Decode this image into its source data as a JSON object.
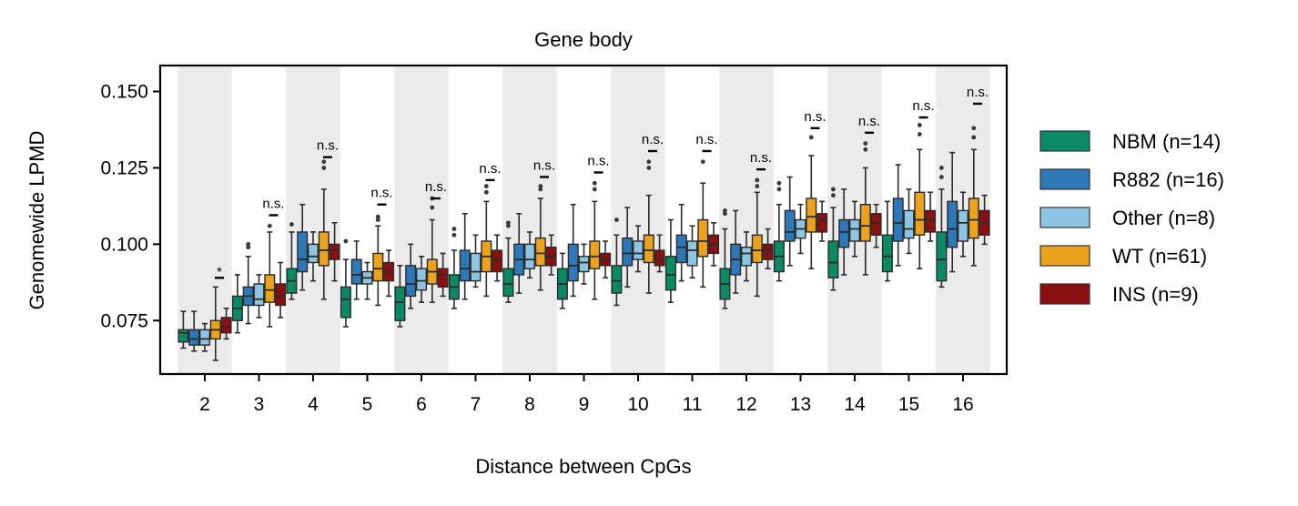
{
  "chart_data": {
    "type": "box",
    "title": "Gene body",
    "xlabel": "Distance between CpGs",
    "ylabel": "Genomewide LPMD",
    "ylim": [
      0.0575,
      0.1585
    ],
    "yticks": [
      0.075,
      0.1,
      0.125,
      0.15
    ],
    "ytick_labels": [
      "0.075",
      "0.100",
      "0.125",
      "0.150"
    ],
    "categories": [
      "2",
      "3",
      "4",
      "5",
      "6",
      "7",
      "8",
      "9",
      "10",
      "11",
      "12",
      "13",
      "14",
      "15",
      "16"
    ],
    "legend_position": "right",
    "shaded_bands": "alternating categories (2, 4, 6, 8, 10, 12, 14, 16)",
    "series": [
      {
        "name": "NBM (n=14)",
        "color": "#0a8a63",
        "boxes": [
          {
            "whislo": 0.066,
            "q1": 0.068,
            "med": 0.071,
            "q3": 0.072,
            "whishi": 0.078,
            "fliers": []
          },
          {
            "whislo": 0.071,
            "q1": 0.075,
            "med": 0.079,
            "q3": 0.083,
            "whishi": 0.09,
            "fliers": []
          },
          {
            "whislo": 0.082,
            "q1": 0.084,
            "med": 0.088,
            "q3": 0.092,
            "whishi": 0.104,
            "fliers": [
              0.1065
            ]
          },
          {
            "whislo": 0.073,
            "q1": 0.076,
            "med": 0.082,
            "q3": 0.086,
            "whishi": 0.095,
            "fliers": [
              0.101
            ]
          },
          {
            "whislo": 0.073,
            "q1": 0.075,
            "med": 0.081,
            "q3": 0.086,
            "whishi": 0.093,
            "fliers": []
          },
          {
            "whislo": 0.079,
            "q1": 0.082,
            "med": 0.086,
            "q3": 0.09,
            "whishi": 0.098,
            "fliers": [
              0.103,
              0.105
            ]
          },
          {
            "whislo": 0.081,
            "q1": 0.083,
            "med": 0.087,
            "q3": 0.092,
            "whishi": 0.102,
            "fliers": [
              0.106,
              0.107
            ]
          },
          {
            "whislo": 0.079,
            "q1": 0.082,
            "med": 0.087,
            "q3": 0.092,
            "whishi": 0.097,
            "fliers": []
          },
          {
            "whislo": 0.08,
            "q1": 0.084,
            "med": 0.088,
            "q3": 0.093,
            "whishi": 0.103,
            "fliers": [
              0.108
            ]
          },
          {
            "whislo": 0.081,
            "q1": 0.085,
            "med": 0.09,
            "q3": 0.096,
            "whishi": 0.108,
            "fliers": []
          },
          {
            "whislo": 0.079,
            "q1": 0.082,
            "med": 0.087,
            "q3": 0.092,
            "whishi": 0.105,
            "fliers": [
              0.11,
              0.111
            ]
          },
          {
            "whislo": 0.088,
            "q1": 0.091,
            "med": 0.096,
            "q3": 0.101,
            "whishi": 0.113,
            "fliers": [
              0.118,
              0.12
            ]
          },
          {
            "whislo": 0.085,
            "q1": 0.089,
            "med": 0.094,
            "q3": 0.101,
            "whishi": 0.112,
            "fliers": [
              0.116,
              0.118
            ]
          },
          {
            "whislo": 0.088,
            "q1": 0.091,
            "med": 0.096,
            "q3": 0.103,
            "whishi": 0.114,
            "fliers": []
          },
          {
            "whislo": 0.086,
            "q1": 0.088,
            "med": 0.095,
            "q3": 0.104,
            "whishi": 0.118,
            "fliers": [
              0.122,
              0.125
            ]
          }
        ]
      },
      {
        "name": "R882 (n=16)",
        "color": "#2e78b8",
        "boxes": [
          {
            "whislo": 0.065,
            "q1": 0.067,
            "med": 0.069,
            "q3": 0.072,
            "whishi": 0.078,
            "fliers": []
          },
          {
            "whislo": 0.074,
            "q1": 0.08,
            "med": 0.083,
            "q3": 0.086,
            "whishi": 0.096,
            "fliers": [
              0.099,
              0.1
            ]
          },
          {
            "whislo": 0.085,
            "q1": 0.091,
            "med": 0.095,
            "q3": 0.104,
            "whishi": 0.113,
            "fliers": []
          },
          {
            "whislo": 0.082,
            "q1": 0.087,
            "med": 0.09,
            "q3": 0.095,
            "whishi": 0.101,
            "fliers": []
          },
          {
            "whislo": 0.079,
            "q1": 0.083,
            "med": 0.087,
            "q3": 0.093,
            "whishi": 0.1,
            "fliers": []
          },
          {
            "whislo": 0.082,
            "q1": 0.088,
            "med": 0.092,
            "q3": 0.098,
            "whishi": 0.11,
            "fliers": []
          },
          {
            "whislo": 0.084,
            "q1": 0.09,
            "med": 0.095,
            "q3": 0.1,
            "whishi": 0.11,
            "fliers": []
          },
          {
            "whislo": 0.083,
            "q1": 0.088,
            "med": 0.093,
            "q3": 0.1,
            "whishi": 0.113,
            "fliers": []
          },
          {
            "whislo": 0.086,
            "q1": 0.093,
            "med": 0.097,
            "q3": 0.102,
            "whishi": 0.112,
            "fliers": []
          },
          {
            "whislo": 0.088,
            "q1": 0.094,
            "med": 0.099,
            "q3": 0.103,
            "whishi": 0.113,
            "fliers": []
          },
          {
            "whislo": 0.084,
            "q1": 0.09,
            "med": 0.095,
            "q3": 0.1,
            "whishi": 0.111,
            "fliers": []
          },
          {
            "whislo": 0.093,
            "q1": 0.101,
            "med": 0.104,
            "q3": 0.111,
            "whishi": 0.122,
            "fliers": []
          },
          {
            "whislo": 0.09,
            "q1": 0.099,
            "med": 0.104,
            "q3": 0.108,
            "whishi": 0.118,
            "fliers": []
          },
          {
            "whislo": 0.093,
            "q1": 0.101,
            "med": 0.107,
            "q3": 0.115,
            "whishi": 0.126,
            "fliers": []
          },
          {
            "whislo": 0.091,
            "q1": 0.099,
            "med": 0.105,
            "q3": 0.114,
            "whishi": 0.13,
            "fliers": []
          }
        ]
      },
      {
        "name": "Other (n=8)",
        "color": "#8dc5e2",
        "boxes": [
          {
            "whislo": 0.065,
            "q1": 0.067,
            "med": 0.069,
            "q3": 0.072,
            "whishi": 0.074,
            "fliers": []
          },
          {
            "whislo": 0.076,
            "q1": 0.08,
            "med": 0.082,
            "q3": 0.087,
            "whishi": 0.09,
            "fliers": []
          },
          {
            "whislo": 0.088,
            "q1": 0.094,
            "med": 0.096,
            "q3": 0.1,
            "whishi": 0.104,
            "fliers": []
          },
          {
            "whislo": 0.082,
            "q1": 0.087,
            "med": 0.089,
            "q3": 0.091,
            "whishi": 0.094,
            "fliers": []
          },
          {
            "whislo": 0.081,
            "q1": 0.085,
            "med": 0.088,
            "q3": 0.092,
            "whishi": 0.096,
            "fliers": []
          },
          {
            "whislo": 0.086,
            "q1": 0.088,
            "med": 0.091,
            "q3": 0.097,
            "whishi": 0.103,
            "fliers": []
          },
          {
            "whislo": 0.089,
            "q1": 0.092,
            "med": 0.095,
            "q3": 0.1,
            "whishi": 0.104,
            "fliers": []
          },
          {
            "whislo": 0.087,
            "q1": 0.091,
            "med": 0.094,
            "q3": 0.096,
            "whishi": 0.1,
            "fliers": []
          },
          {
            "whislo": 0.091,
            "q1": 0.095,
            "med": 0.097,
            "q3": 0.101,
            "whishi": 0.106,
            "fliers": []
          },
          {
            "whislo": 0.089,
            "q1": 0.093,
            "med": 0.098,
            "q3": 0.101,
            "whishi": 0.106,
            "fliers": []
          },
          {
            "whislo": 0.088,
            "q1": 0.093,
            "med": 0.097,
            "q3": 0.099,
            "whishi": 0.104,
            "fliers": []
          },
          {
            "whislo": 0.097,
            "q1": 0.102,
            "med": 0.105,
            "q3": 0.108,
            "whishi": 0.113,
            "fliers": []
          },
          {
            "whislo": 0.096,
            "q1": 0.101,
            "med": 0.105,
            "q3": 0.108,
            "whishi": 0.114,
            "fliers": []
          },
          {
            "whislo": 0.097,
            "q1": 0.102,
            "med": 0.105,
            "q3": 0.111,
            "whishi": 0.118,
            "fliers": []
          },
          {
            "whislo": 0.096,
            "q1": 0.101,
            "med": 0.107,
            "q3": 0.111,
            "whishi": 0.117,
            "fliers": []
          }
        ]
      },
      {
        "name": "WT (n=61)",
        "color": "#eca21d",
        "boxes": [
          {
            "whislo": 0.062,
            "q1": 0.069,
            "med": 0.072,
            "q3": 0.075,
            "whishi": 0.086,
            "fliers": []
          },
          {
            "whislo": 0.073,
            "q1": 0.081,
            "med": 0.085,
            "q3": 0.09,
            "whishi": 0.104,
            "fliers": [
              0.106
            ]
          },
          {
            "whislo": 0.082,
            "q1": 0.093,
            "med": 0.098,
            "q3": 0.104,
            "whishi": 0.118,
            "fliers": [
              0.125,
              0.127
            ]
          },
          {
            "whislo": 0.08,
            "q1": 0.088,
            "med": 0.092,
            "q3": 0.097,
            "whishi": 0.106,
            "fliers": [
              0.108,
              0.109
            ]
          },
          {
            "whislo": 0.081,
            "q1": 0.087,
            "med": 0.091,
            "q3": 0.095,
            "whishi": 0.108,
            "fliers": [
              0.112,
              0.115
            ]
          },
          {
            "whislo": 0.083,
            "q1": 0.091,
            "med": 0.096,
            "q3": 0.101,
            "whishi": 0.114,
            "fliers": [
              0.117,
              0.119
            ]
          },
          {
            "whislo": 0.085,
            "q1": 0.093,
            "med": 0.097,
            "q3": 0.102,
            "whishi": 0.115,
            "fliers": [
              0.118,
              0.119
            ]
          },
          {
            "whislo": 0.082,
            "q1": 0.092,
            "med": 0.096,
            "q3": 0.101,
            "whishi": 0.114,
            "fliers": [
              0.118,
              0.12
            ]
          },
          {
            "whislo": 0.084,
            "q1": 0.094,
            "med": 0.098,
            "q3": 0.103,
            "whishi": 0.116,
            "fliers": [
              0.125,
              0.127
            ]
          },
          {
            "whislo": 0.086,
            "q1": 0.096,
            "med": 0.101,
            "q3": 0.108,
            "whishi": 0.12,
            "fliers": [
              0.127
            ]
          },
          {
            "whislo": 0.083,
            "q1": 0.094,
            "med": 0.098,
            "q3": 0.103,
            "whishi": 0.117,
            "fliers": [
              0.119,
              0.121
            ]
          },
          {
            "whislo": 0.092,
            "q1": 0.104,
            "med": 0.109,
            "q3": 0.115,
            "whishi": 0.129,
            "fliers": [
              0.135
            ]
          },
          {
            "whislo": 0.09,
            "q1": 0.101,
            "med": 0.106,
            "q3": 0.113,
            "whishi": 0.125,
            "fliers": [
              0.131,
              0.133
            ]
          },
          {
            "whislo": 0.092,
            "q1": 0.103,
            "med": 0.108,
            "q3": 0.117,
            "whishi": 0.131,
            "fliers": [
              0.136,
              0.139
            ]
          },
          {
            "whislo": 0.093,
            "q1": 0.102,
            "med": 0.108,
            "q3": 0.115,
            "whishi": 0.131,
            "fliers": [
              0.135,
              0.138
            ]
          }
        ]
      },
      {
        "name": "INS (n=9)",
        "color": "#8b0e10",
        "boxes": [
          {
            "whislo": 0.069,
            "q1": 0.071,
            "med": 0.073,
            "q3": 0.076,
            "whishi": 0.079,
            "fliers": []
          },
          {
            "whislo": 0.076,
            "q1": 0.08,
            "med": 0.083,
            "q3": 0.087,
            "whishi": 0.094,
            "fliers": []
          },
          {
            "whislo": 0.088,
            "q1": 0.095,
            "med": 0.098,
            "q3": 0.1,
            "whishi": 0.107,
            "fliers": []
          },
          {
            "whislo": 0.083,
            "q1": 0.088,
            "med": 0.091,
            "q3": 0.094,
            "whishi": 0.098,
            "fliers": []
          },
          {
            "whislo": 0.083,
            "q1": 0.086,
            "med": 0.09,
            "q3": 0.092,
            "whishi": 0.097,
            "fliers": []
          },
          {
            "whislo": 0.088,
            "q1": 0.091,
            "med": 0.095,
            "q3": 0.098,
            "whishi": 0.103,
            "fliers": []
          },
          {
            "whislo": 0.09,
            "q1": 0.093,
            "med": 0.096,
            "q3": 0.099,
            "whishi": 0.103,
            "fliers": []
          },
          {
            "whislo": 0.089,
            "q1": 0.093,
            "med": 0.095,
            "q3": 0.097,
            "whishi": 0.101,
            "fliers": []
          },
          {
            "whislo": 0.091,
            "q1": 0.093,
            "med": 0.095,
            "q3": 0.098,
            "whishi": 0.103,
            "fliers": []
          },
          {
            "whislo": 0.093,
            "q1": 0.097,
            "med": 0.1,
            "q3": 0.103,
            "whishi": 0.107,
            "fliers": []
          },
          {
            "whislo": 0.092,
            "q1": 0.095,
            "med": 0.098,
            "q3": 0.1,
            "whishi": 0.105,
            "fliers": []
          },
          {
            "whislo": 0.101,
            "q1": 0.104,
            "med": 0.108,
            "q3": 0.11,
            "whishi": 0.114,
            "fliers": []
          },
          {
            "whislo": 0.099,
            "q1": 0.103,
            "med": 0.107,
            "q3": 0.11,
            "whishi": 0.113,
            "fliers": []
          },
          {
            "whislo": 0.101,
            "q1": 0.104,
            "med": 0.108,
            "q3": 0.111,
            "whishi": 0.117,
            "fliers": []
          },
          {
            "whislo": 0.1,
            "q1": 0.103,
            "med": 0.107,
            "q3": 0.111,
            "whishi": 0.116,
            "fliers": []
          }
        ]
      }
    ],
    "significance": [
      {
        "category": "2",
        "label": "*",
        "y": 0.089
      },
      {
        "category": "3",
        "label": "n.s.",
        "y": 0.1095
      },
      {
        "category": "4",
        "label": "n.s.",
        "y": 0.1285
      },
      {
        "category": "5",
        "label": "n.s.",
        "y": 0.113
      },
      {
        "category": "6",
        "label": "n.s.",
        "y": 0.115
      },
      {
        "category": "7",
        "label": "n.s.",
        "y": 0.121
      },
      {
        "category": "8",
        "label": "n.s.",
        "y": 0.122
      },
      {
        "category": "9",
        "label": "n.s.",
        "y": 0.1235
      },
      {
        "category": "10",
        "label": "n.s.",
        "y": 0.1305
      },
      {
        "category": "11",
        "label": "n.s.",
        "y": 0.1305
      },
      {
        "category": "12",
        "label": "n.s.",
        "y": 0.1245
      },
      {
        "category": "13",
        "label": "n.s.",
        "y": 0.138
      },
      {
        "category": "14",
        "label": "n.s.",
        "y": 0.1365
      },
      {
        "category": "15",
        "label": "n.s.",
        "y": 0.1415
      },
      {
        "category": "16",
        "label": "n.s.",
        "y": 0.146
      }
    ]
  }
}
